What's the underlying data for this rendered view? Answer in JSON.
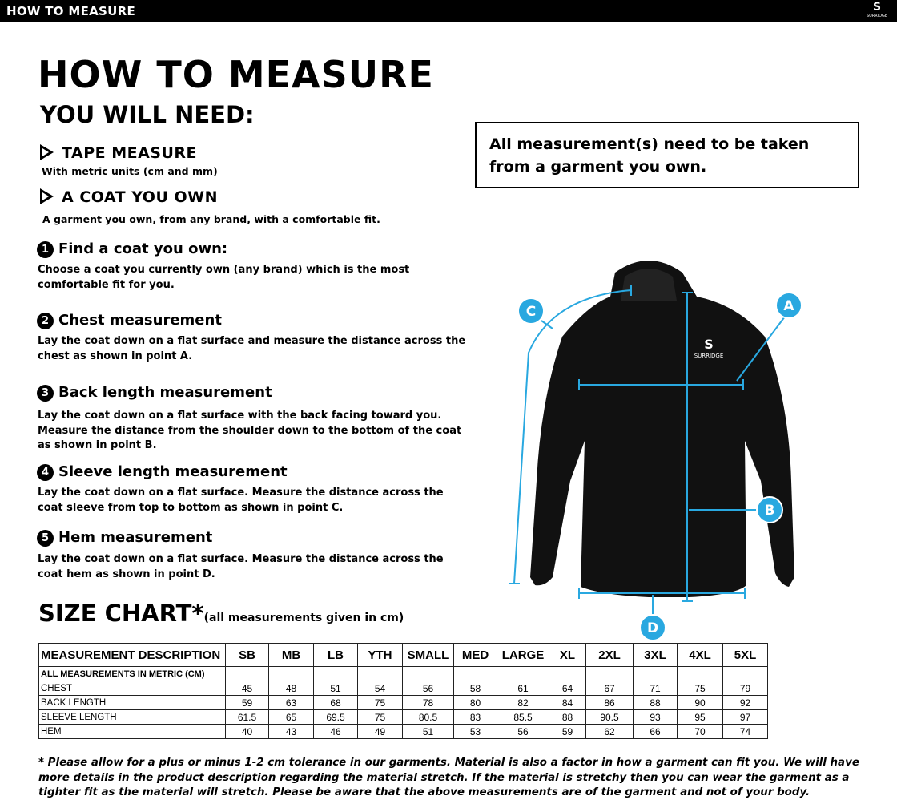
{
  "header": {
    "title": "HOW TO MEASURE",
    "logo_text": "SURRIDGE"
  },
  "title": "HOW TO MEASURE",
  "you_will_need": "YOU WILL NEED:",
  "needs": [
    {
      "label": "TAPE MEASURE",
      "detail": "With metric units (cm and mm)"
    },
    {
      "label": "A COAT YOU OWN",
      "detail": "A garment you own, from any brand, with a comfortable fit."
    }
  ],
  "steps": [
    {
      "num": "1",
      "title": "Find a coat you own:",
      "desc": "Choose a coat you currently own (any brand) which is the most comfortable fit for you."
    },
    {
      "num": "2",
      "title": "Chest measurement",
      "desc": "Lay the coat down on a flat surface and measure the distance across the chest as shown in point A."
    },
    {
      "num": "3",
      "title": "Back length measurement",
      "desc": "Lay the coat down on a flat surface with the back facing toward you. Measure the distance from the shoulder down to the bottom of the coat as shown in point B."
    },
    {
      "num": "4",
      "title": "Sleeve length measurement",
      "desc": "Lay the coat down on a flat surface. Measure the distance across the coat sleeve from top to bottom as shown in point C."
    },
    {
      "num": "5",
      "title": "Hem measurement",
      "desc": "Lay the coat down on a flat surface. Measure the distance across the coat hem as shown in point D."
    }
  ],
  "notice": "All measurement(s) need to be taken from a garment you own.",
  "diagram": {
    "points": [
      "A",
      "B",
      "C",
      "D"
    ],
    "accent": "#29a8e0",
    "jacket_logo": "SURRIDGE"
  },
  "size_chart": {
    "title": "SIZE CHART*",
    "note": "(all measurements given in cm)",
    "header": "MEASUREMENT DESCRIPTION",
    "sizes": [
      "SB",
      "MB",
      "LB",
      "YTH",
      "SMALL",
      "MED",
      "LARGE",
      "XL",
      "2XL",
      "3XL",
      "4XL",
      "5XL"
    ],
    "subheader": "ALL MEASUREMENTS IN METRIC (CM)",
    "rows": [
      {
        "label": "CHEST",
        "values": [
          "45",
          "48",
          "51",
          "54",
          "56",
          "58",
          "61",
          "64",
          "67",
          "71",
          "75",
          "79"
        ]
      },
      {
        "label": "BACK LENGTH",
        "values": [
          "59",
          "63",
          "68",
          "75",
          "78",
          "80",
          "82",
          "84",
          "86",
          "88",
          "90",
          "92"
        ]
      },
      {
        "label": "SLEEVE LENGTH",
        "values": [
          "61.5",
          "65",
          "69.5",
          "75",
          "80.5",
          "83",
          "85.5",
          "88",
          "90.5",
          "93",
          "95",
          "97"
        ]
      },
      {
        "label": "HEM",
        "values": [
          "40",
          "43",
          "46",
          "49",
          "51",
          "53",
          "56",
          "59",
          "62",
          "66",
          "70",
          "74"
        ]
      }
    ]
  },
  "footnote": "* Please allow for a plus or minus 1-2 cm tolerance in our garments. Material is also a factor in how a garment can fit you. We will have more details in the product description regarding the material stretch.  If the material is stretchy then you can wear the garment as a tighter fit as the material will stretch.  Please be aware that the above measurements are of the garment and not of your body."
}
